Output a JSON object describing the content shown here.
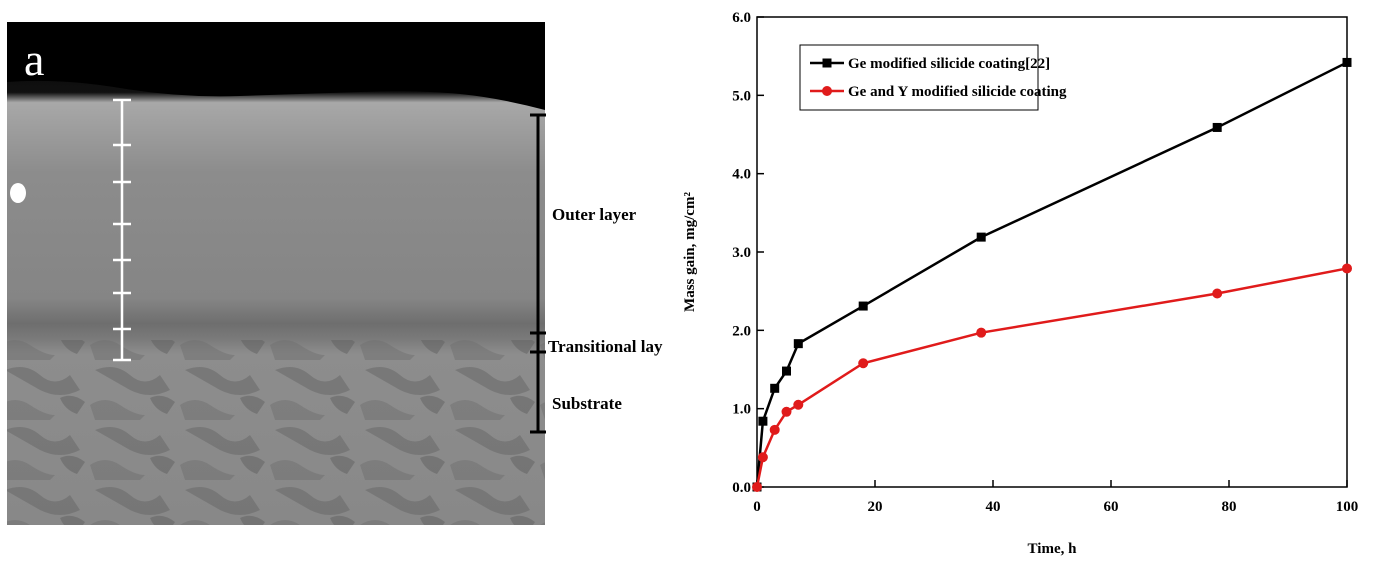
{
  "micrograph": {
    "panel_label": "a",
    "labels": [
      "Outer layer",
      "Transitional lay",
      "Substrate"
    ]
  },
  "chart_data": {
    "type": "line",
    "x_label": "Time, h",
    "y_label": "Mass gain, mg/cm²",
    "xlim": [
      0,
      100
    ],
    "xticks": [
      0,
      20,
      40,
      60,
      80,
      100
    ],
    "ylim": [
      0,
      6
    ],
    "yticks": [
      {
        "value": 0,
        "label": "0.0"
      },
      {
        "value": 1,
        "label": "1.0"
      },
      {
        "value": 2,
        "label": "2.0"
      },
      {
        "value": 3,
        "label": "3.0"
      },
      {
        "value": 4,
        "label": "4.0"
      },
      {
        "value": 5,
        "label": "5.0"
      },
      {
        "value": 6,
        "label": "6.0"
      }
    ],
    "legend": "upper left",
    "series": [
      {
        "name": "Ge modified silicide coating[22]",
        "color": "#000000",
        "marker": "square",
        "x": [
          0,
          1,
          3,
          5,
          7,
          18,
          38,
          78,
          100
        ],
        "values": [
          0,
          0.84,
          1.26,
          1.48,
          1.83,
          2.31,
          3.19,
          4.59,
          5.42
        ]
      },
      {
        "name": "Ge and Y modified silicide coating",
        "color": "#e01b1b",
        "marker": "circle",
        "x": [
          0,
          1,
          3,
          5,
          7,
          18,
          38,
          78,
          100
        ],
        "values": [
          0,
          0.38,
          0.73,
          0.96,
          1.05,
          1.58,
          1.97,
          2.47,
          2.79
        ]
      }
    ]
  }
}
